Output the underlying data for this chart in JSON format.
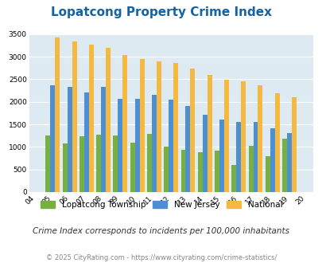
{
  "title": "Lopatcong Property Crime Index",
  "years": [
    2004,
    2005,
    2006,
    2007,
    2008,
    2009,
    2010,
    2011,
    2012,
    2013,
    2014,
    2015,
    2016,
    2017,
    2018,
    2019,
    2020
  ],
  "year_labels": [
    "04",
    "05",
    "06",
    "07",
    "08",
    "09",
    "10",
    "11",
    "12",
    "13",
    "14",
    "15",
    "16",
    "17",
    "18",
    "19",
    "20"
  ],
  "lopatcong": [
    null,
    1250,
    1070,
    1230,
    1270,
    1250,
    1090,
    1295,
    1005,
    940,
    885,
    920,
    600,
    1020,
    795,
    1175,
    null
  ],
  "new_jersey": [
    null,
    2360,
    2330,
    2200,
    2330,
    2065,
    2065,
    2155,
    2045,
    1905,
    1720,
    1615,
    1555,
    1555,
    1410,
    1315,
    null
  ],
  "national": [
    null,
    3420,
    3340,
    3265,
    3205,
    3040,
    2945,
    2905,
    2855,
    2730,
    2590,
    2490,
    2460,
    2365,
    2195,
    2100,
    null
  ],
  "lopatcong_color": "#76b041",
  "nj_color": "#4d8fd1",
  "national_color": "#f5b942",
  "bg_color": "#deeaf1",
  "ylim": [
    0,
    3500
  ],
  "yticks": [
    0,
    500,
    1000,
    1500,
    2000,
    2500,
    3000,
    3500
  ],
  "subtitle": "Crime Index corresponds to incidents per 100,000 inhabitants",
  "footer": "© 2025 CityRating.com - https://www.cityrating.com/crime-statistics/",
  "legend_labels": [
    "Lopatcong Township",
    "New Jersey",
    "National"
  ],
  "title_color": "#1463a5",
  "subtitle_color": "#333333",
  "footer_color": "#888888"
}
